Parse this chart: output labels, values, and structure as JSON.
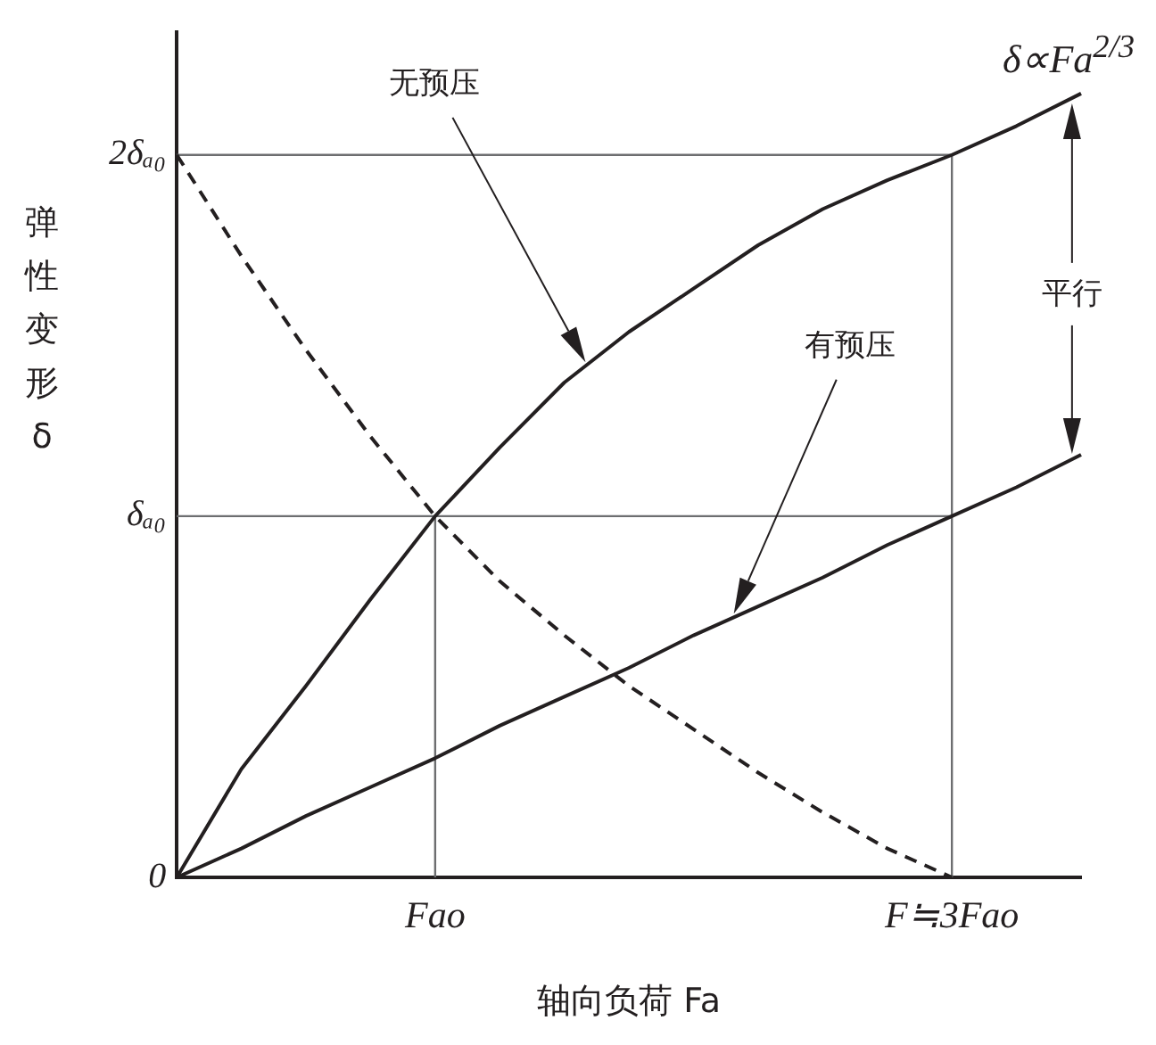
{
  "chart_data": {
    "type": "line",
    "xlabel": "轴向负荷 Fa",
    "ylabel": "弹性变形 δ",
    "ylim": [
      0,
      2.34
    ],
    "categories": [
      null,
      null,
      null,
      null,
      "Fao",
      null,
      null,
      null,
      null,
      null,
      null,
      null,
      "F≒3Fao",
      null,
      null
    ],
    "yticks": [
      0,
      {
        "value": 1,
        "label": "δₐ₀"
      },
      {
        "value": 2,
        "label": "2δₐ₀"
      }
    ],
    "grid": false,
    "legend": false,
    "marker": "none",
    "series": [
      {
        "name": "δ∝Fa$^{2/3}$",
        "color": "#231f20",
        "values": [
          0,
          0.3,
          0.53,
          0.77,
          1,
          1.19,
          1.37,
          1.51,
          1.63,
          1.75,
          1.85,
          1.93,
          2,
          2.08,
          2.17
        ]
      },
      {
        "color": "#231f20",
        "values": [
          0,
          0.08,
          0.17,
          0.25,
          0.33,
          0.42,
          0.5,
          0.58,
          0.67,
          0.75,
          0.83,
          0.92,
          1,
          1.08,
          1.17
        ]
      },
      {
        "color": "#231f20",
        "line_style": "dashed",
        "values": [
          2,
          1.72,
          1.46,
          1.22,
          1,
          0.82,
          0.67,
          0.53,
          0.41,
          0.29,
          0.18,
          0.08,
          0,
          null,
          null
        ]
      },
      {
        "color": "#6d6e70",
        "values": [
          2,
          2,
          2,
          2,
          2,
          2,
          2,
          2,
          2,
          2,
          2,
          2,
          2,
          null,
          null
        ]
      },
      {
        "color": "#6d6e70",
        "values": [
          1,
          1,
          1,
          1,
          1,
          1,
          1,
          1,
          1,
          1,
          1,
          1,
          1,
          null,
          null
        ]
      },
      {
        "color": "#6d6e70",
        "x": [
          "Fao",
          "Fao"
        ],
        "values": [
          1,
          0
        ]
      },
      {
        "color": "#6d6e70",
        "x": [
          "F≒3Fao",
          "F≒3Fao"
        ],
        "values": [
          2,
          0
        ]
      }
    ],
    "annotations": [
      "无预压",
      "有预压",
      "平行"
    ]
  }
}
